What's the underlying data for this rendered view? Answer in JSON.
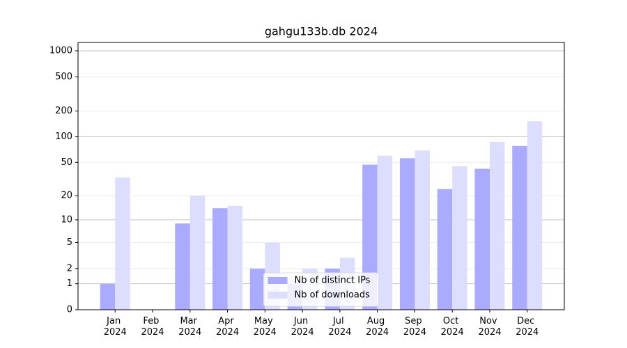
{
  "chart_data": {
    "type": "bar",
    "title": "gahgu133b.db 2024",
    "categories": [
      "Jan 2024",
      "Feb 2024",
      "Mar 2024",
      "Apr 2024",
      "May 2024",
      "Jun 2024",
      "Jul 2024",
      "Aug 2024",
      "Sep 2024",
      "Oct 2024",
      "Nov 2024",
      "Dec 2024"
    ],
    "series": [
      {
        "name": "Nb of distinct IPs",
        "color": "#aaaaff",
        "values": [
          1,
          0,
          9,
          14,
          2,
          1,
          2,
          47,
          56,
          24,
          42,
          78
        ]
      },
      {
        "name": "Nb of downloads",
        "color": "#ddddff",
        "values": [
          33,
          0,
          20,
          15,
          5,
          2,
          3,
          60,
          69,
          45,
          87,
          152
        ]
      }
    ],
    "yscale": "log1p",
    "ylim": [
      0,
      1250
    ],
    "yticks": [
      0,
      1,
      2,
      5,
      10,
      20,
      50,
      100,
      200,
      500,
      1000
    ],
    "grid": true,
    "legend": "lower center"
  }
}
